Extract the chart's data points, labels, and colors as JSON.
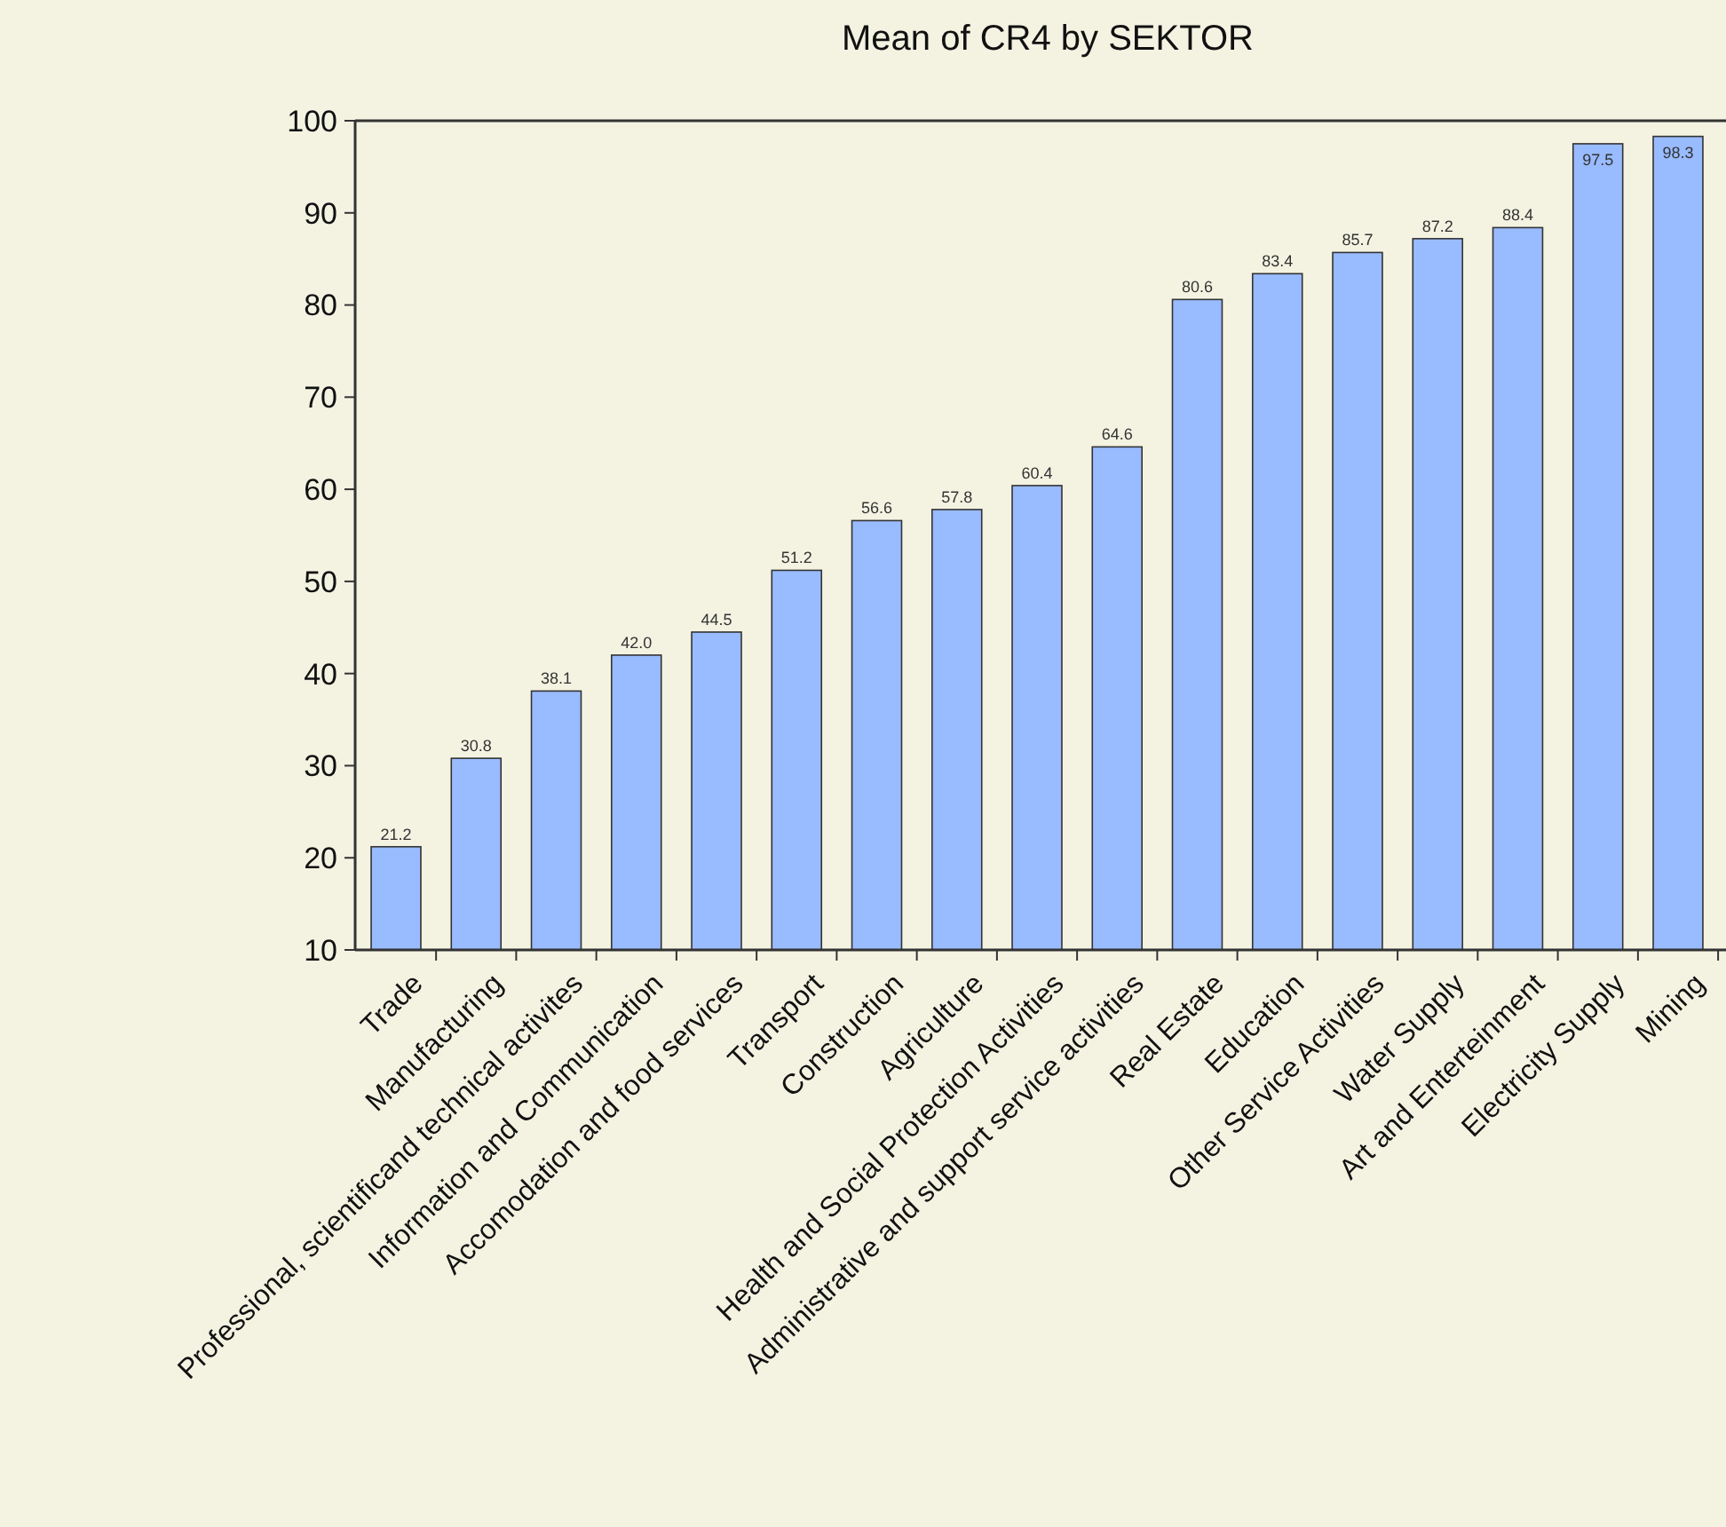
{
  "chart_data": {
    "type": "bar",
    "title": "Mean of CR4 by SEKTOR",
    "categories": [
      "Trade",
      "Manufacturing",
      "Professional, scientificand technical activites",
      "Information and Communication",
      "Accomodation and food services",
      "Transport",
      "Construction",
      "Agriculture",
      "Health and Social Protection Activities",
      "Administrative and support service activities",
      "Real Estate",
      "Education",
      "Other Service Activities",
      "Water Supply",
      "Art and Enterteinment",
      "Electricity Supply",
      "Mining"
    ],
    "values": [
      21.2,
      30.8,
      38.1,
      42.0,
      44.5,
      51.2,
      56.6,
      57.8,
      60.4,
      64.6,
      80.6,
      83.4,
      85.7,
      87.2,
      88.4,
      97.5,
      98.3
    ],
    "value_labels": [
      "21.2",
      "30.8",
      "38.1",
      "42.0",
      "44.5",
      "51.2",
      "56.6",
      "57.8",
      "60.4",
      "64.6",
      "80.6",
      "83.4",
      "85.7",
      "87.2",
      "88.4",
      "97.5",
      "98.3"
    ],
    "color": "#99bbff",
    "ylim": [
      10,
      100
    ],
    "yticks": [
      10,
      20,
      30,
      40,
      50,
      60,
      70,
      80,
      90,
      100
    ],
    "grid": false
  }
}
